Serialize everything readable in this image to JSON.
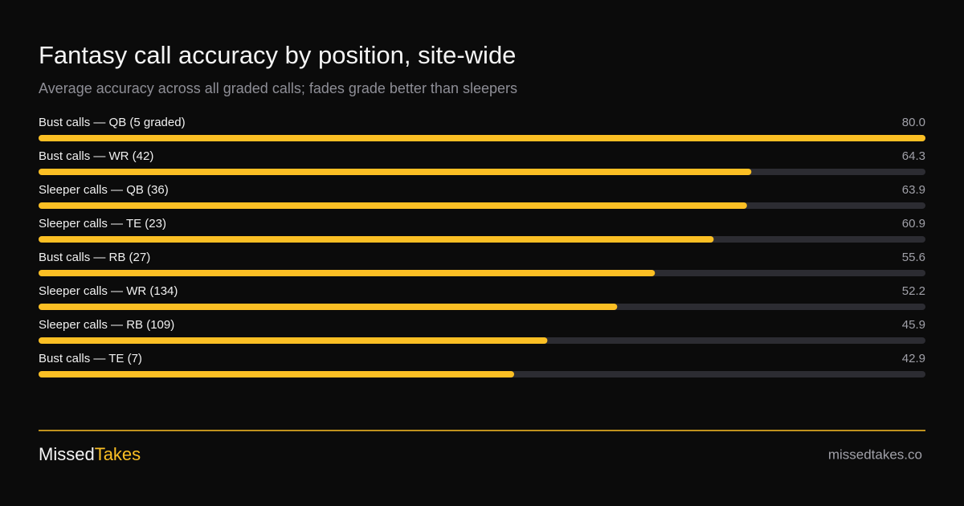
{
  "chart_data": {
    "type": "hbar",
    "title": "Fantasy call accuracy by position, site-wide",
    "subtitle": "Average accuracy across all graded calls; fades grade better than sleepers",
    "categories": [
      "Bust calls — QB (5 graded)",
      "Bust calls — WR (42)",
      "Sleeper calls — QB (36)",
      "Sleeper calls — TE (23)",
      "Bust calls — RB (27)",
      "Sleeper calls — WR (134)",
      "Sleeper calls — RB (109)",
      "Bust calls — TE (7)"
    ],
    "values": [
      80.0,
      64.3,
      63.9,
      60.9,
      55.6,
      52.2,
      45.9,
      42.9
    ],
    "value_labels": [
      "80.0",
      "64.3",
      "63.9",
      "60.9",
      "55.6",
      "52.2",
      "45.9",
      "42.9"
    ],
    "color": "#fbbf24",
    "xlim": [
      0,
      80
    ]
  },
  "footer": {
    "brand_left": "Missed",
    "brand_right": "Takes",
    "url": "missedtakes.co"
  }
}
